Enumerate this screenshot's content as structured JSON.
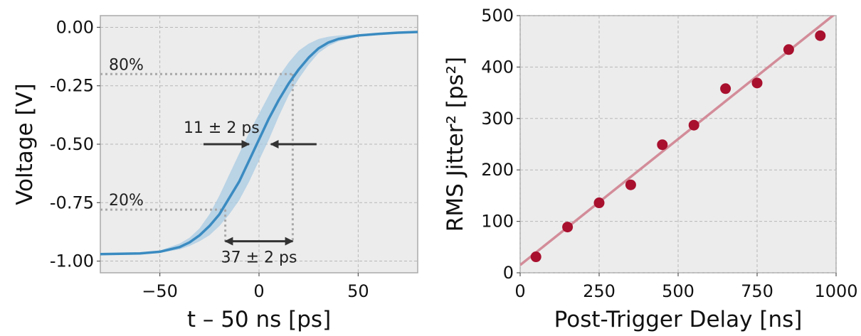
{
  "chart_data": [
    {
      "type": "line",
      "xlabel": "t – 50 ns [ps]",
      "ylabel": "Voltage [V]",
      "xlim": [
        -80,
        80
      ],
      "ylim": [
        -1.05,
        0.05
      ],
      "xticks": [
        -50,
        0,
        50
      ],
      "xtick_labels": [
        "−50",
        "0",
        "50"
      ],
      "yticks": [
        0.0,
        -0.25,
        -0.5,
        -0.75,
        -1.0
      ],
      "ytick_labels": [
        "0.00",
        "-0.25",
        "-0.50",
        "-0.75",
        "-1.00"
      ],
      "grid": true,
      "series": [
        {
          "color": "#3a8bc1",
          "x": [
            -80,
            -70,
            -60,
            -50,
            -40,
            -35,
            -30,
            -25,
            -20,
            -15,
            -10,
            -5,
            0,
            5,
            10,
            15,
            20,
            25,
            30,
            35,
            40,
            50,
            60,
            70,
            80
          ],
          "y": [
            -0.97,
            -0.969,
            -0.967,
            -0.96,
            -0.94,
            -0.92,
            -0.89,
            -0.85,
            -0.8,
            -0.73,
            -0.66,
            -0.57,
            -0.48,
            -0.39,
            -0.31,
            -0.24,
            -0.18,
            -0.13,
            -0.09,
            -0.065,
            -0.05,
            -0.035,
            -0.028,
            -0.023,
            -0.02
          ],
          "band_lower": [
            -0.97,
            -0.969,
            -0.967,
            -0.965,
            -0.95,
            -0.935,
            -0.915,
            -0.89,
            -0.85,
            -0.8,
            -0.74,
            -0.66,
            -0.57,
            -0.48,
            -0.38,
            -0.29,
            -0.22,
            -0.16,
            -0.11,
            -0.08,
            -0.06,
            -0.04,
            -0.03,
            -0.024,
            -0.021
          ],
          "band_upper": [
            -0.97,
            -0.968,
            -0.965,
            -0.955,
            -0.925,
            -0.9,
            -0.86,
            -0.8,
            -0.72,
            -0.63,
            -0.54,
            -0.45,
            -0.37,
            -0.29,
            -0.21,
            -0.15,
            -0.1,
            -0.07,
            -0.05,
            -0.04,
            -0.035,
            -0.03,
            -0.025,
            -0.022,
            -0.019
          ],
          "band_color": "#a9cbe3"
        }
      ],
      "reference_lines": [
        {
          "label": "80%",
          "y": -0.2,
          "x_start": -80,
          "x_end": 17
        },
        {
          "label": "20%",
          "y": -0.78,
          "x_start": -80,
          "x_end": -17
        },
        {
          "x": -17,
          "y_start": -0.78,
          "y_end": -0.92
        },
        {
          "x": 17,
          "y_start": -0.2,
          "y_end": -0.92
        }
      ],
      "annotations": [
        {
          "text": "11 ± 2 ps",
          "type": "converging_arrows",
          "y": -0.5,
          "left_x_start": -28,
          "left_x_end": -5,
          "right_x_start": 29,
          "right_x_end": 6
        },
        {
          "text": "37 ± 2 ps",
          "type": "double_arrow",
          "y": -0.915,
          "x_start": -17,
          "x_end": 17
        }
      ]
    },
    {
      "type": "scatter",
      "xlabel": "Post-Trigger Delay [ns]",
      "ylabel": "RMS Jitter² [ps²]",
      "xlim": [
        0,
        1000
      ],
      "ylim": [
        0,
        500
      ],
      "xticks": [
        0,
        250,
        500,
        750,
        1000
      ],
      "xtick_labels": [
        "0",
        "250",
        "500",
        "750",
        "1000"
      ],
      "yticks": [
        0,
        100,
        200,
        300,
        400,
        500
      ],
      "ytick_labels": [
        "0",
        "100",
        "200",
        "300",
        "400",
        "500"
      ],
      "grid": true,
      "points": {
        "color": "#a8102e",
        "x": [
          50,
          150,
          250,
          350,
          450,
          550,
          650,
          750,
          850,
          950
        ],
        "y": [
          31,
          89,
          136,
          171,
          249,
          287,
          358,
          369,
          434,
          461
        ]
      },
      "fit_line": {
        "color": "#d38c99",
        "x": [
          0,
          1000
        ],
        "y": [
          15,
          505
        ]
      }
    }
  ]
}
